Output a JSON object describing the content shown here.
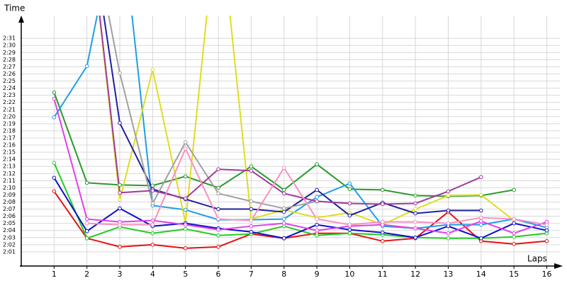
{
  "chart_data": {
    "type": "line",
    "y_label": "Time",
    "x_label": "Laps",
    "x": [
      1,
      2,
      3,
      4,
      5,
      6,
      7,
      8,
      9,
      10,
      11,
      12,
      13,
      14,
      15,
      16
    ],
    "xlim": [
      0,
      16.4
    ],
    "xticks": [
      1,
      2,
      3,
      4,
      5,
      6,
      7,
      8,
      9,
      10,
      11,
      12,
      13,
      14,
      15,
      16
    ],
    "ylim": [
      119,
      154.2
    ],
    "yticks": [
      {
        "value": 121,
        "label": "2:01"
      },
      {
        "value": 122,
        "label": "2:02"
      },
      {
        "value": 123,
        "label": "2:03"
      },
      {
        "value": 124,
        "label": "2:04"
      },
      {
        "value": 125,
        "label": "2:05"
      },
      {
        "value": 126,
        "label": "2:06"
      },
      {
        "value": 127,
        "label": "2:07"
      },
      {
        "value": 128,
        "label": "2:08"
      },
      {
        "value": 129,
        "label": "2:09"
      },
      {
        "value": 130,
        "label": "2:10"
      },
      {
        "value": 131,
        "label": "2:11"
      },
      {
        "value": 132,
        "label": "2:12"
      },
      {
        "value": 133,
        "label": "2:13"
      },
      {
        "value": 134,
        "label": "2:14"
      },
      {
        "value": 135,
        "label": "2:15"
      },
      {
        "value": 136,
        "label": "2:16"
      },
      {
        "value": 137,
        "label": "2:17"
      },
      {
        "value": 138,
        "label": "2:18"
      },
      {
        "value": 139,
        "label": "2:19"
      },
      {
        "value": 140,
        "label": "2:20"
      },
      {
        "value": 141,
        "label": "2:21"
      },
      {
        "value": 142,
        "label": "2:22"
      },
      {
        "value": 143,
        "label": "2:23"
      },
      {
        "value": 144,
        "label": "2:24"
      },
      {
        "value": 145,
        "label": "2:25"
      },
      {
        "value": 146,
        "label": "2:26"
      },
      {
        "value": 147,
        "label": "2:27"
      },
      {
        "value": 148,
        "label": "2:28"
      },
      {
        "value": 149,
        "label": "2:29"
      },
      {
        "value": 150,
        "label": "2:30"
      },
      {
        "value": 151,
        "label": "2:31"
      }
    ],
    "grid": true,
    "series": [
      {
        "color": "#e81010",
        "values": [
          129.5,
          122.9,
          121.7,
          122.0,
          121.5,
          121.7,
          123.5,
          122.9,
          123.6,
          123.6,
          122.5,
          122.9,
          126.6,
          122.5,
          122.1,
          122.5
        ]
      },
      {
        "color": "#22cc22",
        "values": [
          133.5,
          122.9,
          124.5,
          123.6,
          124.2,
          123.3,
          123.5,
          124.6,
          123.3,
          123.6,
          123.4,
          123.0,
          122.9,
          122.9,
          123.1,
          123.6
        ]
      },
      {
        "color": "#2a9a2a",
        "values": [
          143.4,
          130.7,
          130.4,
          130.3,
          131.6,
          130.0,
          133.0,
          129.7,
          133.3,
          129.8,
          129.7,
          128.9,
          128.8,
          128.9,
          129.7,
          null
        ]
      },
      {
        "color": "#1e9ee8",
        "values": [
          139.9,
          147.1,
          170,
          127.5,
          126.9,
          125.5,
          125.5,
          125.6,
          128.7,
          130.6,
          124.6,
          124.3,
          124.8,
          124.8,
          125.6,
          124.4
        ]
      },
      {
        "color": "#dede20",
        "values": [
          null,
          170,
          128.3,
          146.6,
          125.1,
          170,
          125.6,
          126.9,
          125.8,
          126.5,
          124.8,
          127.0,
          128.9,
          129.0,
          125.4,
          null
        ]
      },
      {
        "color": "#1010c8",
        "values": [
          131.4,
          123.9,
          127.1,
          124.6,
          125.0,
          124.3,
          123.8,
          122.9,
          124.8,
          124.1,
          123.7,
          123.0,
          124.6,
          122.9,
          125.0,
          124.0
        ]
      },
      {
        "color": "#2020a0",
        "values": [
          null,
          170,
          139.1,
          129.8,
          128.4,
          127.0,
          127.0,
          126.6,
          129.7,
          126.1,
          127.9,
          126.4,
          126.8,
          126.8,
          null,
          null
        ]
      },
      {
        "color": "#a0a0a0",
        "values": [
          null,
          170,
          146.1,
          127.8,
          136.4,
          129.2,
          128.1,
          127.1,
          128.1,
          127.8,
          null,
          null,
          null,
          null,
          null,
          null
        ]
      },
      {
        "color": "#a03c9c",
        "values": [
          null,
          170,
          129.3,
          129.6,
          128.5,
          132.6,
          132.4,
          129.2,
          128.1,
          127.8,
          127.7,
          127.8,
          129.5,
          131.5,
          null,
          null
        ]
      },
      {
        "color": "#e040e8",
        "values": [
          142.5,
          125.6,
          125.2,
          125.4,
          124.8,
          124.1,
          124.6,
          125.0,
          124.0,
          124.6,
          124.8,
          124.3,
          123.6,
          125.3,
          123.6,
          125.2
        ]
      },
      {
        "color": "#f890c0",
        "values": [
          null,
          125.0,
          124.8,
          124.8,
          135.5,
          125.6,
          125.4,
          132.8,
          125.6,
          124.8,
          125.2,
          125.2,
          125.0,
          125.8,
          125.6,
          124.8
        ]
      }
    ]
  }
}
